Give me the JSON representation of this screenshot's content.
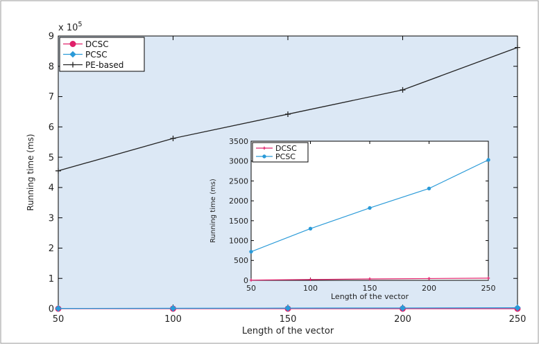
{
  "chart_data": [
    {
      "type": "line",
      "title": "",
      "xlabel": "Length of the vector",
      "ylabel": "Running time (ms)",
      "exponent_label": "x 10",
      "exponent_power": "5",
      "x_ticks": [
        "50",
        "100",
        "150",
        "200",
        "250"
      ],
      "y_ticks": [
        "0",
        "1",
        "2",
        "3",
        "4",
        "5",
        "6",
        "7",
        "8",
        "9"
      ],
      "xlim": [
        50,
        250
      ],
      "ylim": [
        0,
        900000
      ],
      "grid": false,
      "legend_position": "top-left",
      "series": [
        {
          "name": "DCSC",
          "color": "#e0206a",
          "marker": "circle",
          "x": [
            50,
            100,
            150,
            200,
            250
          ],
          "values": [
            5,
            20,
            35,
            45,
            55
          ]
        },
        {
          "name": "PCSC",
          "color": "#2a9ad8",
          "marker": "diamond",
          "x": [
            50,
            100,
            150,
            200,
            250
          ],
          "values": [
            720,
            1300,
            1820,
            2310,
            3030
          ]
        },
        {
          "name": "PE-based",
          "color": "#222222",
          "marker": "plus",
          "x": [
            50,
            100,
            150,
            200,
            250
          ],
          "values": [
            455000,
            562000,
            642000,
            722000,
            862000
          ]
        }
      ]
    },
    {
      "type": "line",
      "title": "",
      "xlabel": "Length of the vector",
      "ylabel": "Running time (ms)",
      "x_ticks": [
        "50",
        "100",
        "150",
        "200",
        "250"
      ],
      "y_ticks": [
        "0",
        "500",
        "1000",
        "1500",
        "2000",
        "2500",
        "3000",
        "3500"
      ],
      "xlim": [
        50,
        250
      ],
      "ylim": [
        0,
        3500
      ],
      "grid": false,
      "legend_position": "top-left",
      "series": [
        {
          "name": "DCSC",
          "color": "#e0206a",
          "marker": "plus",
          "x": [
            50,
            100,
            150,
            200,
            250
          ],
          "values": [
            5,
            20,
            35,
            45,
            55
          ]
        },
        {
          "name": "PCSC",
          "color": "#2a9ad8",
          "marker": "dot",
          "x": [
            50,
            100,
            150,
            200,
            250
          ],
          "values": [
            720,
            1300,
            1820,
            2310,
            3030
          ]
        }
      ]
    }
  ]
}
